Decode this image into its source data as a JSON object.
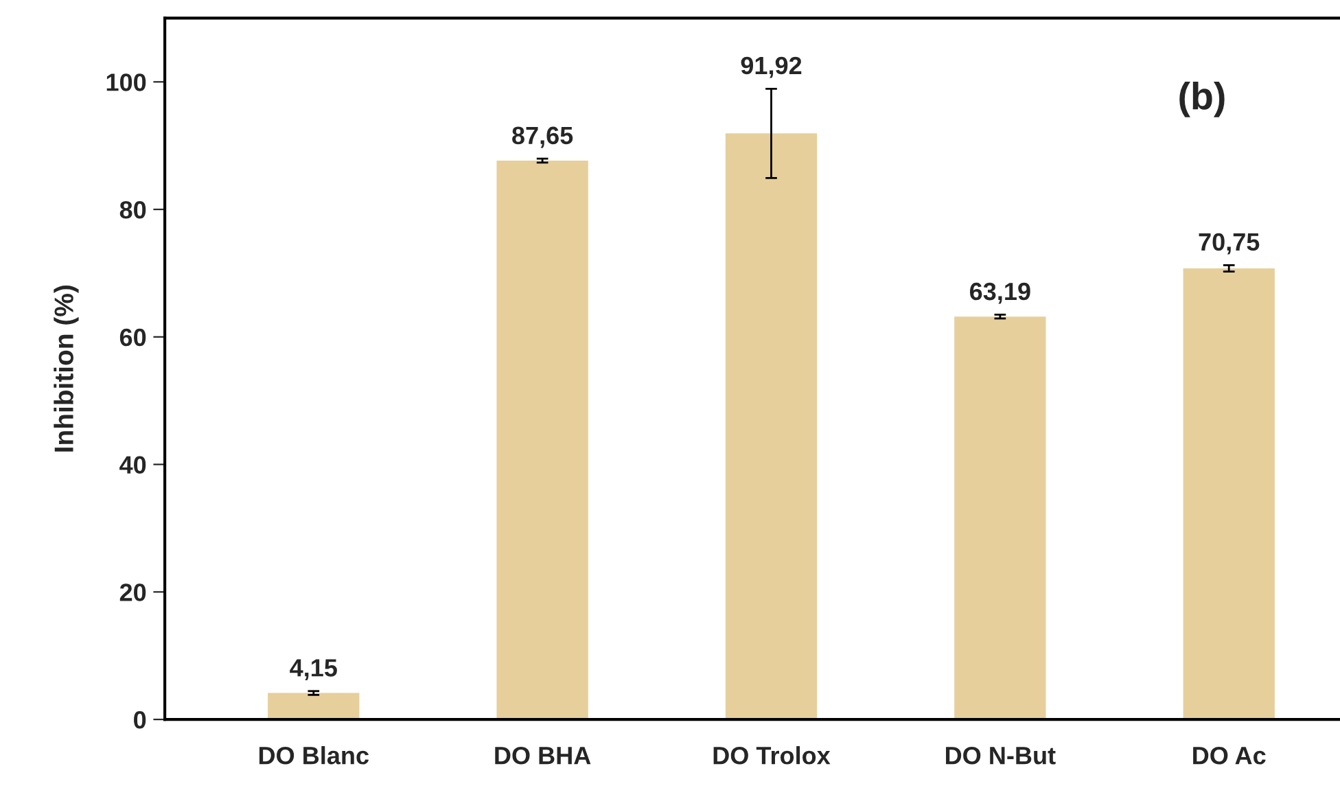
{
  "chart_data": {
    "type": "bar",
    "ylabel": "Inhibition (%)",
    "categories": [
      "DO Blanc",
      "DO BHA",
      "DO Trolox",
      "DO N-But",
      "DO Ac"
    ],
    "values": [
      4.15,
      87.65,
      91.92,
      63.19,
      70.75
    ],
    "errors": [
      0.3,
      0.3,
      7,
      0.3,
      0.5
    ],
    "color": "#e6cf9b",
    "ylim": [
      0,
      110
    ],
    "yticks": [
      0,
      20,
      40,
      60,
      80,
      100
    ],
    "data_labels": true,
    "value_labels": [
      "4,15",
      "87,65",
      "91,92",
      "63,19",
      "70,75"
    ],
    "annotations": [
      "(b)"
    ],
    "grid": false,
    "legend": false
  }
}
